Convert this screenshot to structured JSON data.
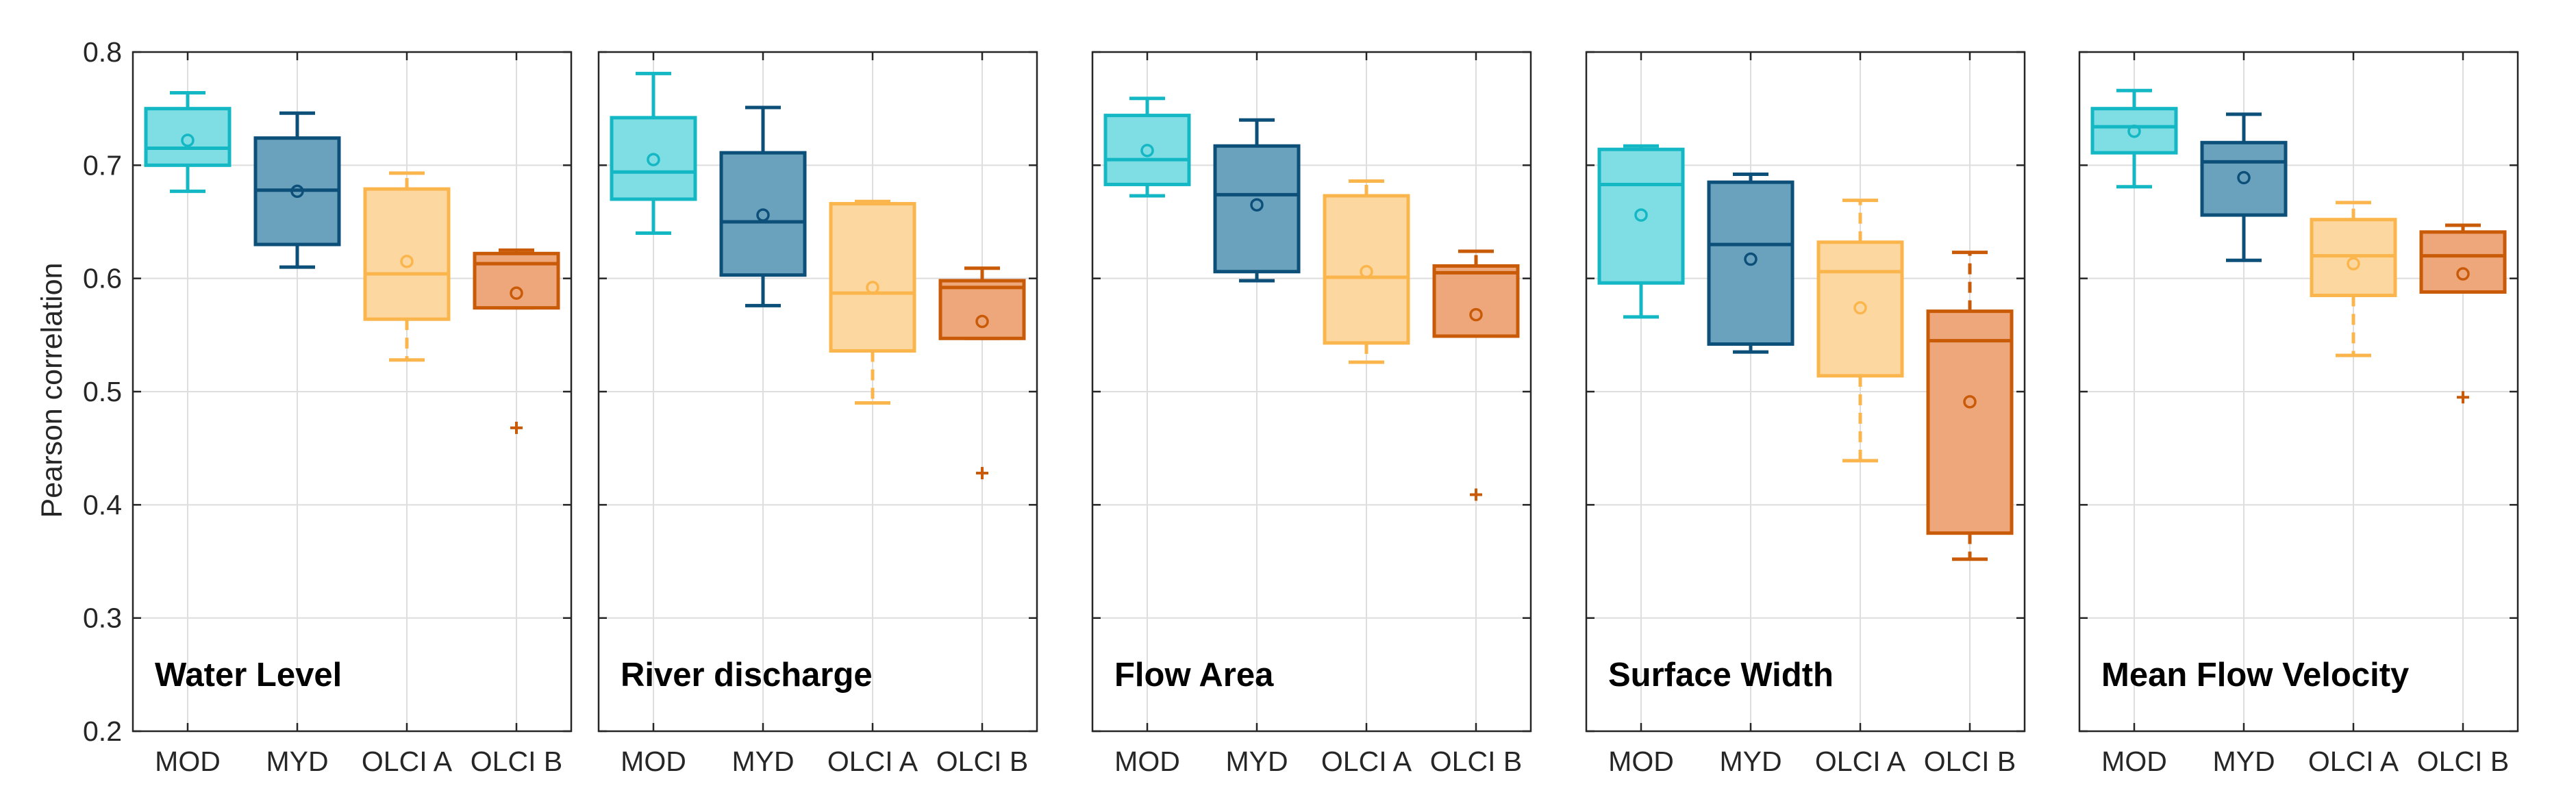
{
  "chart_data": {
    "type": "boxplot",
    "ylabel": "Pearson correlation",
    "ylim": [
      0.2,
      0.8
    ],
    "yticks": [
      "0.2",
      "0.3",
      "0.4",
      "0.5",
      "0.6",
      "0.7",
      "0.8"
    ],
    "categories": [
      "MOD",
      "MYD",
      "OLCI A",
      "OLCI B"
    ],
    "grid": true,
    "series_colors": {
      "MOD": {
        "fill": "#7fdde4",
        "edge": "#14b7c4"
      },
      "MYD": {
        "fill": "#6aa1bd",
        "edge": "#0c4f79"
      },
      "OLCI A": {
        "fill": "#fdd7a0",
        "edge": "#fbb54d"
      },
      "OLCI B": {
        "fill": "#eda77a",
        "edge": "#c95a07"
      }
    },
    "panels": [
      {
        "title": "Water Level",
        "boxes": [
          {
            "category": "MOD",
            "whisker_low": 0.677,
            "q1": 0.7,
            "median": 0.715,
            "q3": 0.75,
            "whisker_high": 0.764,
            "mean": 0.722,
            "outliers": []
          },
          {
            "category": "MYD",
            "whisker_low": 0.61,
            "q1": 0.63,
            "median": 0.678,
            "q3": 0.724,
            "whisker_high": 0.746,
            "mean": 0.677,
            "outliers": []
          },
          {
            "category": "OLCI A",
            "whisker_low": 0.528,
            "q1": 0.564,
            "median": 0.604,
            "q3": 0.679,
            "whisker_high": 0.693,
            "mean": 0.615,
            "outliers": []
          },
          {
            "category": "OLCI B",
            "whisker_low": 0.574,
            "q1": 0.574,
            "median": 0.613,
            "q3": 0.622,
            "whisker_high": 0.625,
            "mean": 0.587,
            "outliers": [
              0.468
            ]
          }
        ]
      },
      {
        "title": "River discharge",
        "boxes": [
          {
            "category": "MOD",
            "whisker_low": 0.64,
            "q1": 0.67,
            "median": 0.694,
            "q3": 0.742,
            "whisker_high": 0.781,
            "mean": 0.705,
            "outliers": []
          },
          {
            "category": "MYD",
            "whisker_low": 0.576,
            "q1": 0.603,
            "median": 0.65,
            "q3": 0.711,
            "whisker_high": 0.751,
            "mean": 0.656,
            "outliers": []
          },
          {
            "category": "OLCI A",
            "whisker_low": 0.49,
            "q1": 0.536,
            "median": 0.587,
            "q3": 0.666,
            "whisker_high": 0.668,
            "mean": 0.592,
            "outliers": []
          },
          {
            "category": "OLCI B",
            "whisker_low": 0.547,
            "q1": 0.547,
            "median": 0.592,
            "q3": 0.598,
            "whisker_high": 0.609,
            "mean": 0.562,
            "outliers": [
              0.428
            ]
          }
        ]
      },
      {
        "title": "Flow Area",
        "boxes": [
          {
            "category": "MOD",
            "whisker_low": 0.673,
            "q1": 0.683,
            "median": 0.705,
            "q3": 0.744,
            "whisker_high": 0.759,
            "mean": 0.713,
            "outliers": []
          },
          {
            "category": "MYD",
            "whisker_low": 0.598,
            "q1": 0.606,
            "median": 0.674,
            "q3": 0.717,
            "whisker_high": 0.74,
            "mean": 0.665,
            "outliers": []
          },
          {
            "category": "OLCI A",
            "whisker_low": 0.526,
            "q1": 0.543,
            "median": 0.601,
            "q3": 0.673,
            "whisker_high": 0.686,
            "mean": 0.606,
            "outliers": []
          },
          {
            "category": "OLCI B",
            "whisker_low": 0.549,
            "q1": 0.549,
            "median": 0.605,
            "q3": 0.611,
            "whisker_high": 0.624,
            "mean": 0.568,
            "outliers": [
              0.409
            ]
          }
        ]
      },
      {
        "title": "Surface Width",
        "boxes": [
          {
            "category": "MOD",
            "whisker_low": 0.566,
            "q1": 0.596,
            "median": 0.683,
            "q3": 0.714,
            "whisker_high": 0.717,
            "mean": 0.656,
            "outliers": []
          },
          {
            "category": "MYD",
            "whisker_low": 0.535,
            "q1": 0.542,
            "median": 0.63,
            "q3": 0.685,
            "whisker_high": 0.692,
            "mean": 0.617,
            "outliers": []
          },
          {
            "category": "OLCI A",
            "whisker_low": 0.439,
            "q1": 0.514,
            "median": 0.606,
            "q3": 0.632,
            "whisker_high": 0.669,
            "mean": 0.574,
            "outliers": []
          },
          {
            "category": "OLCI B",
            "whisker_low": 0.352,
            "q1": 0.375,
            "median": 0.545,
            "q3": 0.571,
            "whisker_high": 0.623,
            "mean": 0.491,
            "outliers": []
          }
        ]
      },
      {
        "title": "Mean Flow Velocity",
        "boxes": [
          {
            "category": "MOD",
            "whisker_low": 0.681,
            "q1": 0.711,
            "median": 0.734,
            "q3": 0.75,
            "whisker_high": 0.766,
            "mean": 0.73,
            "outliers": []
          },
          {
            "category": "MYD",
            "whisker_low": 0.616,
            "q1": 0.656,
            "median": 0.703,
            "q3": 0.72,
            "whisker_high": 0.745,
            "mean": 0.689,
            "outliers": []
          },
          {
            "category": "OLCI A",
            "whisker_low": 0.532,
            "q1": 0.585,
            "median": 0.62,
            "q3": 0.652,
            "whisker_high": 0.667,
            "mean": 0.613,
            "outliers": []
          },
          {
            "category": "OLCI B",
            "whisker_low": 0.588,
            "q1": 0.588,
            "median": 0.62,
            "q3": 0.641,
            "whisker_high": 0.647,
            "mean": 0.604,
            "outliers": [
              0.495
            ]
          }
        ]
      }
    ]
  }
}
